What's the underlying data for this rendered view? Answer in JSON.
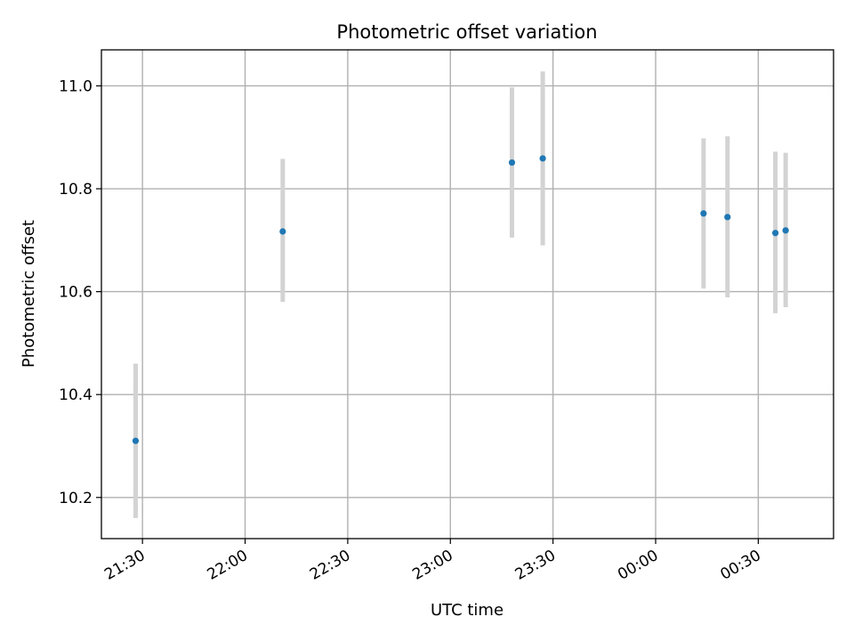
{
  "chart_data": {
    "type": "scatter",
    "title": "Photometric offset variation",
    "xlabel": "UTC time",
    "ylabel": "Photometric offset",
    "x_ticks": [
      "21:30",
      "22:00",
      "22:30",
      "23:00",
      "23:30",
      "00:00",
      "00:30"
    ],
    "y_ticks": [
      "10.2",
      "10.4",
      "10.6",
      "10.8",
      "11.0"
    ],
    "xlim": [
      "21:18",
      "00:52"
    ],
    "ylim": [
      10.12,
      11.07
    ],
    "grid": true,
    "series": [
      {
        "points": [
          {
            "time": "21:28",
            "y": 10.31,
            "y_low": 10.16,
            "y_high": 10.46
          },
          {
            "time": "22:11",
            "y": 10.717,
            "y_low": 10.58,
            "y_high": 10.858
          },
          {
            "time": "23:18",
            "y": 10.851,
            "y_low": 10.705,
            "y_high": 10.997
          },
          {
            "time": "23:27",
            "y": 10.859,
            "y_low": 10.69,
            "y_high": 11.028
          },
          {
            "time": "00:14",
            "y": 10.752,
            "y_low": 10.606,
            "y_high": 10.898
          },
          {
            "time": "00:21",
            "y": 10.745,
            "y_low": 10.589,
            "y_high": 10.902
          },
          {
            "time": "00:35",
            "y": 10.714,
            "y_low": 10.558,
            "y_high": 10.872
          },
          {
            "time": "00:38",
            "y": 10.719,
            "y_low": 10.57,
            "y_high": 10.87
          }
        ]
      }
    ],
    "colors": {
      "point": "#1f77b4",
      "errorbar": "#d3d3d3",
      "grid": "#b0b0b0"
    }
  }
}
